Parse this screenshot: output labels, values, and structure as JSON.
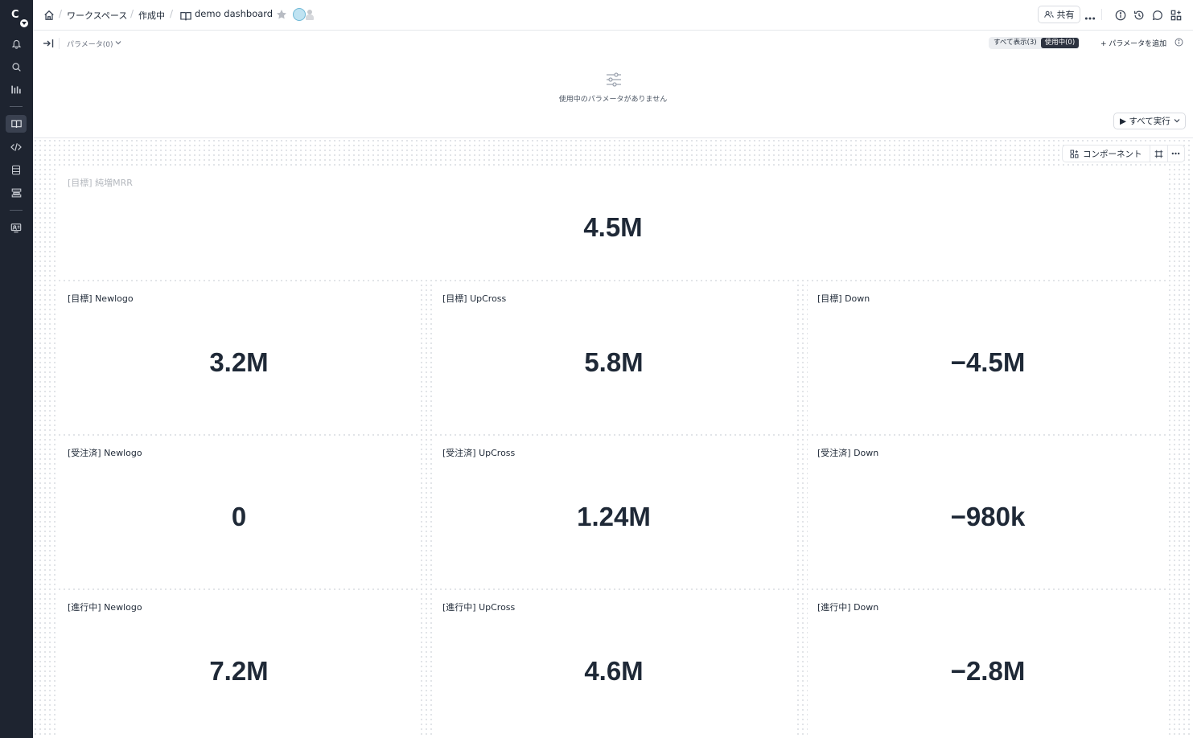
{
  "rail": {
    "logo_letter": "C",
    "items": [
      "bell-icon",
      "search-icon",
      "analytics-icon",
      "dashboard-icon",
      "code-icon",
      "database-icon",
      "layers-icon",
      "org-icon"
    ]
  },
  "header": {
    "breadcrumbs": [
      "ワークスペース",
      "作成中"
    ],
    "title": "demo dashboard",
    "share_label": "共有"
  },
  "params": {
    "label": "パラメータ(0)",
    "show_all_label": "すべて表示(3)",
    "in_use_label": "使用中(0)",
    "add_param_label": "+ パラメータを追加",
    "empty_text": "使用中のパラメータがありません",
    "run_all_label": "▶ すべて実行"
  },
  "canvas": {
    "component_label": "コンポーネント"
  },
  "cards": [
    {
      "title": "[目標] 純増MRR",
      "value": "4.5M"
    },
    {
      "title": "[目標] Newlogo",
      "value": "3.2M"
    },
    {
      "title": "[目標] UpCross",
      "value": "5.8M"
    },
    {
      "title": "[目標] Down",
      "value": "−4.5M"
    },
    {
      "title": "[受注済] Newlogo",
      "value": "0"
    },
    {
      "title": "[受注済] UpCross",
      "value": "1.24M"
    },
    {
      "title": "[受注済] Down",
      "value": "−980k"
    },
    {
      "title": "[進行中] Newlogo",
      "value": "7.2M"
    },
    {
      "title": "[進行中] UpCross",
      "value": "4.6M"
    },
    {
      "title": "[進行中] Down",
      "value": "−2.8M"
    }
  ]
}
